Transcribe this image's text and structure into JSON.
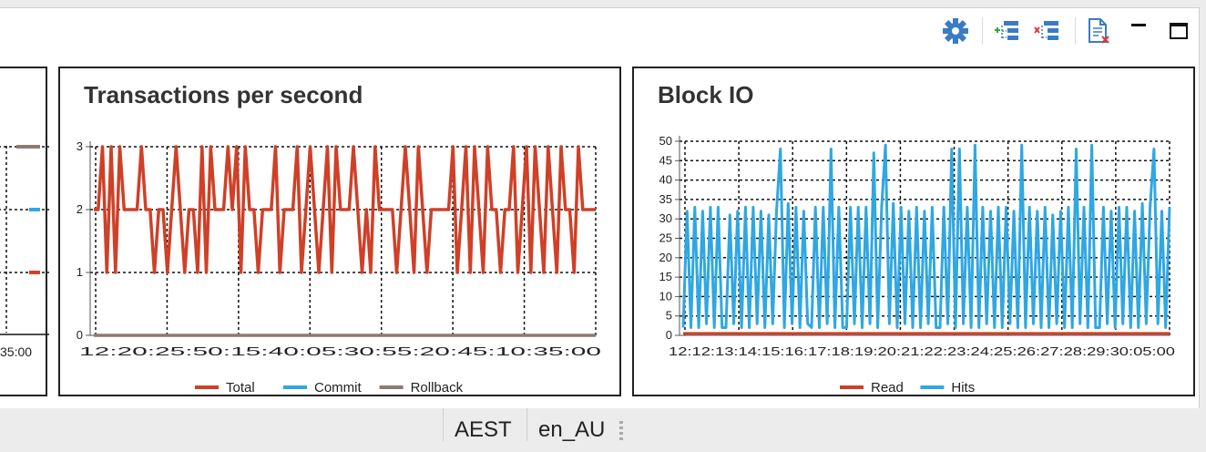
{
  "colors": {
    "total": "#cf4027",
    "commit": "#2fa7e3",
    "rollback": "#8c7b72",
    "read": "#cf4027",
    "hits": "#2fa7e3",
    "gear": "#3a7cc4"
  },
  "toolbar": {
    "settings_icon": "gear-icon",
    "add_icon": "add-tree-icon",
    "remove_icon": "remove-tree-icon",
    "clear_icon": "clear-document-icon",
    "minimize_icon": "minimize-icon",
    "maximize_icon": "maximize-icon"
  },
  "left_chart": {
    "x_tick_partial": "35:00"
  },
  "chart_data": [
    {
      "type": "line",
      "title": "Transactions per second",
      "ylim": [
        0,
        3
      ],
      "yticks": [
        "0",
        "1",
        "2",
        "3"
      ],
      "x_tick_labels": "12:20:25:50:15:40:05:30:55:20:45:10:35:00",
      "xlabel": "",
      "ylabel": "",
      "grid": true,
      "legend_position": "bottom",
      "legend": [
        "Total",
        "Commit",
        "Rollback"
      ],
      "series": [
        {
          "name": "Total",
          "values": [
            2,
            2,
            3,
            1,
            3,
            1,
            3,
            2,
            2,
            2,
            2,
            3,
            2,
            2,
            1,
            2,
            2,
            1,
            2,
            3,
            2,
            1,
            2,
            2,
            1,
            3,
            1,
            3,
            2,
            2,
            2,
            3,
            2,
            3,
            1,
            3,
            2,
            2,
            1,
            2,
            2,
            2,
            3,
            1,
            2,
            2,
            2,
            3,
            1,
            2,
            3,
            2,
            1,
            2,
            3,
            1,
            3,
            2,
            2,
            2,
            3,
            2,
            1,
            2,
            1,
            3,
            2,
            2,
            2,
            2,
            1,
            2,
            3,
            2,
            1,
            3,
            2,
            1,
            2,
            2,
            2,
            2,
            2,
            3,
            1,
            2,
            3,
            1,
            3,
            2,
            1,
            3,
            2,
            2,
            1,
            2,
            2,
            3,
            1,
            2,
            3,
            1,
            3,
            2,
            1,
            3,
            2,
            1,
            3,
            2,
            2,
            1,
            3,
            2,
            2,
            2,
            2
          ]
        },
        {
          "name": "Commit",
          "values": []
        },
        {
          "name": "Rollback",
          "values": [
            0,
            0,
            0,
            0,
            0,
            0,
            0,
            0,
            0,
            0,
            0,
            0,
            0,
            0,
            0,
            0,
            0,
            0,
            0,
            0
          ]
        }
      ]
    },
    {
      "type": "line",
      "title": "Block IO",
      "ylim": [
        0,
        50
      ],
      "yticks": [
        "0",
        "5",
        "10",
        "15",
        "20",
        "25",
        "30",
        "35",
        "40",
        "45",
        "50"
      ],
      "x_tick_labels": "12:12:13:14:15:16:17:18:19:20:21:22:23:24:25:26:27:28:29:30:05:00",
      "xlabel": "",
      "ylabel": "",
      "grid": true,
      "legend_position": "bottom",
      "legend": [
        "Read",
        "Hits"
      ],
      "series": [
        {
          "name": "Read",
          "values": [
            0.5,
            0.5,
            0.5,
            0.5,
            0.5,
            0.5,
            0.5,
            0.5,
            0.5,
            0.5
          ]
        },
        {
          "name": "Hits",
          "values": [
            2,
            32,
            2,
            33,
            2,
            32,
            3,
            33,
            2,
            33,
            2,
            2,
            31,
            3,
            32,
            2,
            33,
            2,
            33,
            3,
            32,
            2,
            31,
            3,
            32,
            48,
            2,
            34,
            3,
            33,
            2,
            32,
            3,
            2,
            33,
            2,
            33,
            3,
            48,
            2,
            33,
            2,
            2,
            33,
            3,
            33,
            2,
            33,
            3,
            47,
            2,
            33,
            49,
            3,
            34,
            2,
            33,
            3,
            32,
            2,
            33,
            2,
            32,
            3,
            33,
            2,
            2,
            33,
            3,
            48,
            2,
            48,
            3,
            33,
            2,
            49,
            2,
            33,
            3,
            32,
            2,
            33,
            2,
            33,
            3,
            32,
            2,
            49,
            2,
            33,
            3,
            32,
            2,
            33,
            2,
            31,
            3,
            32,
            2,
            33,
            2,
            48,
            3,
            33,
            2,
            49,
            2,
            2,
            33,
            3,
            32,
            2,
            33,
            3,
            33,
            2,
            32,
            2,
            34,
            3,
            33,
            48,
            3,
            32,
            2,
            33
          ]
        }
      ]
    }
  ],
  "status_bar": {
    "timezone": "AEST",
    "locale": "en_AU"
  }
}
